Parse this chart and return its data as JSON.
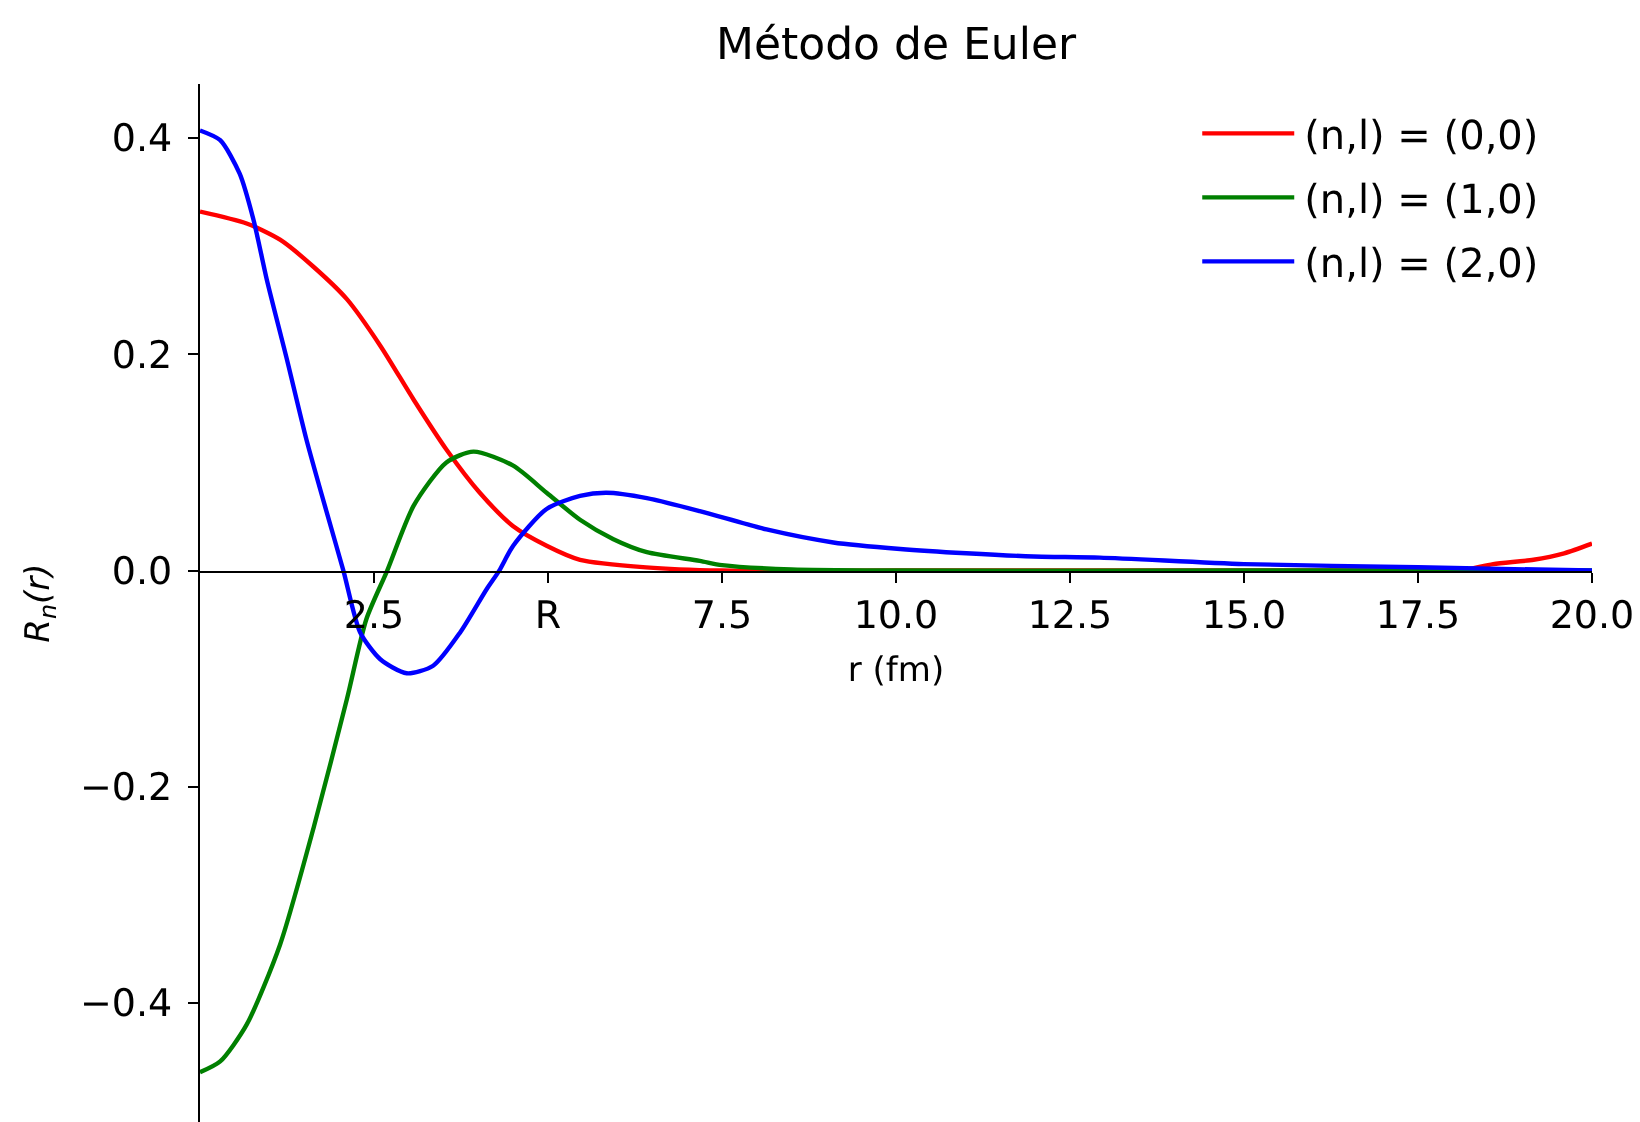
{
  "chart_data": {
    "type": "line",
    "title": "Método de Euler",
    "xlabel": "r (fm)",
    "ylabel": "R$_{n}$(r)",
    "xlim": [
      0,
      20
    ],
    "ylim": [
      -0.51,
      0.45
    ],
    "xticks": [
      2.5,
      {
        "value": 5,
        "label": "R"
      },
      7.5,
      {
        "value": 10,
        "label": "10.0"
      },
      12.5,
      {
        "value": 15,
        "label": "15.0"
      },
      17.5,
      {
        "value": 20,
        "label": "20.0"
      }
    ],
    "yticks": [
      {
        "value": -0.4,
        "label": "−0.4"
      },
      {
        "value": -0.2,
        "label": "−0.2"
      },
      {
        "value": 0,
        "label": "0.0"
      },
      0.2,
      0.4
    ],
    "grid": false,
    "legend": "top right",
    "marker": "none",
    "line_style": "solid",
    "series": [
      {
        "name": "(n,l) = (0,0)",
        "color": "#ff0000",
        "x": [
          0,
          0.67,
          1.15,
          1.63,
          2.11,
          2.59,
          3.07,
          3.54,
          4.02,
          4.5,
          4.98,
          5.46,
          6.41,
          7.5,
          10,
          12.5,
          15,
          17.5,
          18.1,
          18.58,
          19.16,
          19.6,
          20
        ],
        "values": [
          0.332,
          0.321,
          0.306,
          0.281,
          0.251,
          0.208,
          0.158,
          0.112,
          0.072,
          0.041,
          0.023,
          0.01,
          0.003,
          0,
          0,
          0,
          0,
          0,
          0,
          0.006,
          0.01,
          0.016,
          0.025
        ]
      },
      {
        "name": "(n,l) = (1,0)",
        "color": "#008000",
        "x": [
          0,
          0.29,
          0.67,
          1.15,
          1.64,
          2.11,
          2.39,
          2.69,
          3.07,
          3.54,
          3.93,
          4.5,
          4.98,
          5.46,
          5.94,
          6.42,
          7.18,
          7.5,
          8.5,
          10,
          15,
          20
        ],
        "values": [
          -0.464,
          -0.454,
          -0.42,
          -0.346,
          -0.236,
          -0.119,
          -0.045,
          0,
          0.06,
          0.1,
          0.11,
          0.097,
          0.072,
          0.047,
          0.029,
          0.017,
          0.009,
          0.005,
          0.001,
          0,
          0,
          0
        ]
      },
      {
        "name": "(n,l) = (2,0)",
        "color": "#0000ff",
        "x": [
          0,
          0.29,
          0.57,
          0.77,
          0.96,
          1.25,
          1.53,
          1.82,
          2.06,
          2.3,
          2.59,
          2.97,
          3.35,
          3.74,
          4.12,
          4.3,
          4.5,
          4.98,
          5.46,
          5.84,
          6.42,
          7.18,
          8.14,
          9.1,
          10.06,
          11.01,
          11.98,
          12.93,
          15,
          17.5,
          20
        ],
        "values": [
          0.407,
          0.398,
          0.367,
          0.324,
          0.269,
          0.195,
          0.121,
          0.054,
          0,
          -0.057,
          -0.082,
          -0.095,
          -0.088,
          -0.057,
          -0.017,
          0,
          0.023,
          0.057,
          0.069,
          0.072,
          0.067,
          0.055,
          0.038,
          0.026,
          0.02,
          0.016,
          0.013,
          0.012,
          0.006,
          0.003,
          0
        ]
      }
    ]
  }
}
